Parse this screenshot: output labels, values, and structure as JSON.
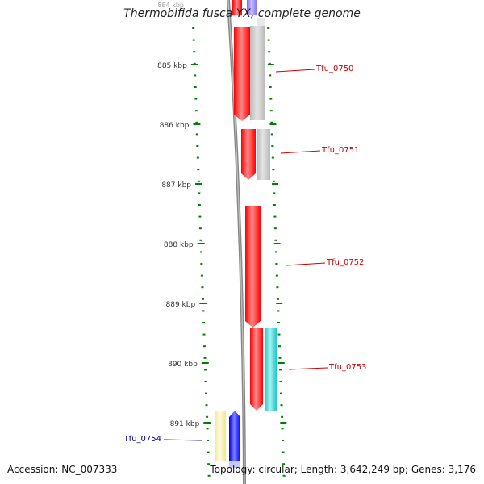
{
  "title": "Thermobifida fusca YX, complete genome",
  "footer": {
    "accession": "Accession: NC_007333",
    "summary": "Topology: circular; Length: 3,642,249 bp; Genes: 3,176"
  },
  "ruler": {
    "top_label": "884 kbp",
    "labels": [
      "885 kbp",
      "886 kbp",
      "887 kbp",
      "888 kbp",
      "889 kbp",
      "890 kbp",
      "891 kbp"
    ],
    "tick_color": "#008000"
  },
  "genes": [
    {
      "name": "Tfu_0750",
      "label_color": "#cc0000"
    },
    {
      "name": "Tfu_0751",
      "label_color": "#cc0000"
    },
    {
      "name": "Tfu_0752",
      "label_color": "#cc0000"
    },
    {
      "name": "Tfu_0753",
      "label_color": "#cc0000"
    },
    {
      "name": "Tfu_0754",
      "label_color": "#000099"
    }
  ],
  "colors": {
    "gene_red": "#ff0000",
    "gene_gray": "#b8b8b8",
    "gene_cyan": "#1ec8c8",
    "gene_yellow": "#f0e68c",
    "gene_blue": "#0000ff",
    "gene_purple": "#7b68ee",
    "backbone": "#888888"
  }
}
